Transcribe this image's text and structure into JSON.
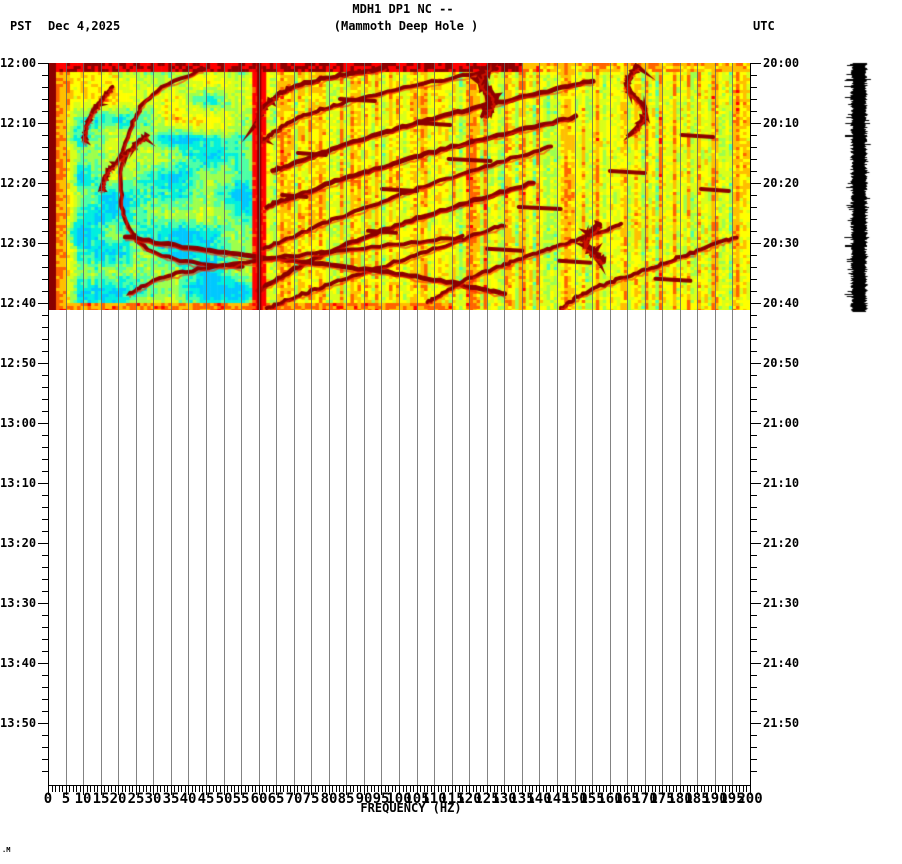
{
  "header": {
    "title1": "MDH1 DP1 NC --",
    "title2": "(Mammoth Deep Hole )",
    "left_tz": "PST",
    "date": "Dec 4,2025",
    "right_tz": "UTC"
  },
  "frequency_axis": {
    "label": "FREQUENCY (HZ)",
    "min_hz": 0,
    "max_hz": 200,
    "major_tick_hz": 5,
    "minor_tick_hz": 1,
    "labels": [
      "0",
      "5",
      "10",
      "15",
      "20",
      "25",
      "30",
      "35",
      "40",
      "45",
      "50",
      "55",
      "60",
      "65",
      "70",
      "75",
      "80",
      "85",
      "90",
      "95",
      "100",
      "105",
      "110",
      "115",
      "120",
      "125",
      "130",
      "135",
      "140",
      "145",
      "150",
      "155",
      "160",
      "165",
      "170",
      "175",
      "180",
      "185",
      "190",
      "195",
      "200"
    ]
  },
  "time_axis_left": {
    "timezone": "PST",
    "major_tick_min": 10,
    "minor_tick_min": 2,
    "labels": [
      "12:00",
      "12:10",
      "12:20",
      "12:30",
      "12:40",
      "12:50",
      "13:00",
      "13:10",
      "13:20",
      "13:30",
      "13:40",
      "13:50"
    ]
  },
  "time_axis_right": {
    "timezone": "UTC",
    "labels": [
      "20:00",
      "20:10",
      "20:20",
      "20:30",
      "20:40",
      "20:50",
      "21:00",
      "21:10",
      "21:20",
      "21:30",
      "21:40",
      "21:50"
    ]
  },
  "watermark": ".M",
  "chart_data": {
    "type": "heatmap",
    "title": "MDH1 DP1 NC -- (Mammoth Deep Hole ) seismic spectrogram",
    "xlabel": "FREQUENCY (HZ)",
    "x_range_hz": [
      0,
      200
    ],
    "y_left_range_pst": [
      "12:00",
      "14:00"
    ],
    "y_right_range_utc": [
      "20:00",
      "22:00"
    ],
    "data_extent_pst": [
      "12:00",
      "12:41"
    ],
    "grid": "vertical gray lines every 5 Hz",
    "legend_position": "none",
    "seed": 20251204,
    "palette": [
      {
        "upto": 0.15,
        "color": "#00c8ff"
      },
      {
        "upto": 0.25,
        "color": "#00efdf"
      },
      {
        "upto": 0.35,
        "color": "#4dffa6"
      },
      {
        "upto": 0.45,
        "color": "#9dff4d"
      },
      {
        "upto": 0.55,
        "color": "#d8ff1a"
      },
      {
        "upto": 0.65,
        "color": "#ffff00"
      },
      {
        "upto": 0.75,
        "color": "#ffbf00"
      },
      {
        "upto": 0.85,
        "color": "#ff6400"
      },
      {
        "upto": 0.93,
        "color": "#ff0000"
      },
      {
        "upto": 1.01,
        "color": "#8b0000"
      }
    ],
    "background_model": {
      "saturated_low_freq_band_hz": [
        0,
        5
      ],
      "quiet_cyan_band_hz": [
        5,
        58
      ],
      "noisy_yellow_band_hz": [
        62,
        200
      ],
      "hot_top_band_min": 1.6,
      "hot_bottom_band": {
        "from_min": 39.8,
        "below_hz": 115
      }
    },
    "features": {
      "vertical_tremor_line_hz": 60,
      "arcs": [
        {
          "w": 5,
          "pts": [
            [
              96,
              0.8
            ],
            [
              72,
              3.5
            ],
            [
              62,
              7
            ],
            [
              59,
              10.5
            ]
          ]
        },
        {
          "w": 4,
          "pts": [
            [
              128,
              1
            ],
            [
              95,
              5
            ],
            [
              72,
              9
            ],
            [
              61,
              13
            ]
          ]
        },
        {
          "w": 5,
          "pts": [
            [
              155,
              3
            ],
            [
              118,
              8
            ],
            [
              88,
              13
            ],
            [
              64,
              18
            ]
          ]
        },
        {
          "w": 5,
          "pts": [
            [
              150,
              9
            ],
            [
              115,
              14
            ],
            [
              86,
              19
            ],
            [
              62,
              24
            ]
          ]
        },
        {
          "w": 4,
          "pts": [
            [
              143,
              14
            ],
            [
              110,
              20
            ],
            [
              82,
              26
            ],
            [
              61,
              31
            ]
          ]
        },
        {
          "w": 5,
          "pts": [
            [
              138,
              20
            ],
            [
              105,
              26
            ],
            [
              78,
              32
            ],
            [
              60,
              38
            ]
          ]
        },
        {
          "w": 4,
          "pts": [
            [
              130,
              27
            ],
            [
              100,
              33
            ],
            [
              75,
              38
            ],
            [
              62,
              41
            ]
          ]
        },
        {
          "w": 4,
          "pts": [
            [
              44,
              1
            ],
            [
              30,
              5
            ],
            [
              24,
              10
            ],
            [
              21,
              16
            ],
            [
              21,
              24
            ],
            [
              26,
              30
            ],
            [
              38,
              33
            ],
            [
              55,
              34
            ]
          ]
        },
        {
          "w": 5,
          "pts": [
            [
              22,
              29
            ],
            [
              48,
              31.5
            ],
            [
              78,
              33.5
            ],
            [
              108,
              36
            ],
            [
              130,
              38.5
            ]
          ]
        },
        {
          "w": 4,
          "pts": [
            [
              118,
              29
            ],
            [
              88,
              31
            ],
            [
              58,
              33
            ],
            [
              34,
              35.5
            ],
            [
              23,
              38.5
            ]
          ]
        },
        {
          "w": 4,
          "pts": [
            [
              163,
              27
            ],
            [
              148,
              30
            ],
            [
              133,
              33
            ],
            [
              118,
              36.5
            ],
            [
              108,
              40
            ]
          ]
        },
        {
          "w": 4,
          "pts": [
            [
              196,
              29
            ],
            [
              182,
              32
            ],
            [
              168,
              35
            ],
            [
              154,
              38
            ],
            [
              146,
              41
            ]
          ]
        },
        {
          "w": 5,
          "pts": [
            [
              168,
              0.5
            ],
            [
              165,
              4
            ],
            [
              170,
              8
            ],
            [
              167,
              11.5
            ]
          ]
        },
        {
          "w": 7,
          "pts": [
            [
              126,
              0.5
            ],
            [
              123,
              3
            ],
            [
              127,
              6
            ],
            [
              124,
              9
            ]
          ]
        },
        {
          "w": 6,
          "pts": [
            [
              157,
              27
            ],
            [
              153,
              30
            ],
            [
              158,
              33
            ]
          ]
        },
        {
          "w": 4,
          "pts": [
            [
              18,
              4
            ],
            [
              14,
              7
            ],
            [
              11,
              10
            ],
            [
              10,
              13
            ]
          ]
        },
        {
          "w": 4,
          "pts": [
            [
              28,
              12
            ],
            [
              22,
              15
            ],
            [
              17,
              18
            ],
            [
              15,
              21
            ]
          ]
        }
      ],
      "dashes": [
        [
          88,
          6,
          10
        ],
        [
          120,
          16,
          12
        ],
        [
          100,
          21,
          10
        ],
        [
          140,
          24,
          12
        ],
        [
          75,
          15,
          8
        ],
        [
          165,
          18,
          10
        ],
        [
          185,
          12,
          9
        ],
        [
          130,
          31,
          10
        ],
        [
          95,
          28,
          8
        ],
        [
          178,
          36,
          10
        ],
        [
          110,
          10,
          9
        ],
        [
          150,
          33,
          9
        ],
        [
          190,
          21,
          8
        ],
        [
          70,
          22,
          7
        ]
      ]
    }
  },
  "trace_panel": {
    "description": "clipped seismogram amplitude trace",
    "color": "#000000",
    "time_extent_pst": [
      "12:00",
      "12:41"
    ],
    "spike_rows_y": [
      73,
      183
    ]
  }
}
